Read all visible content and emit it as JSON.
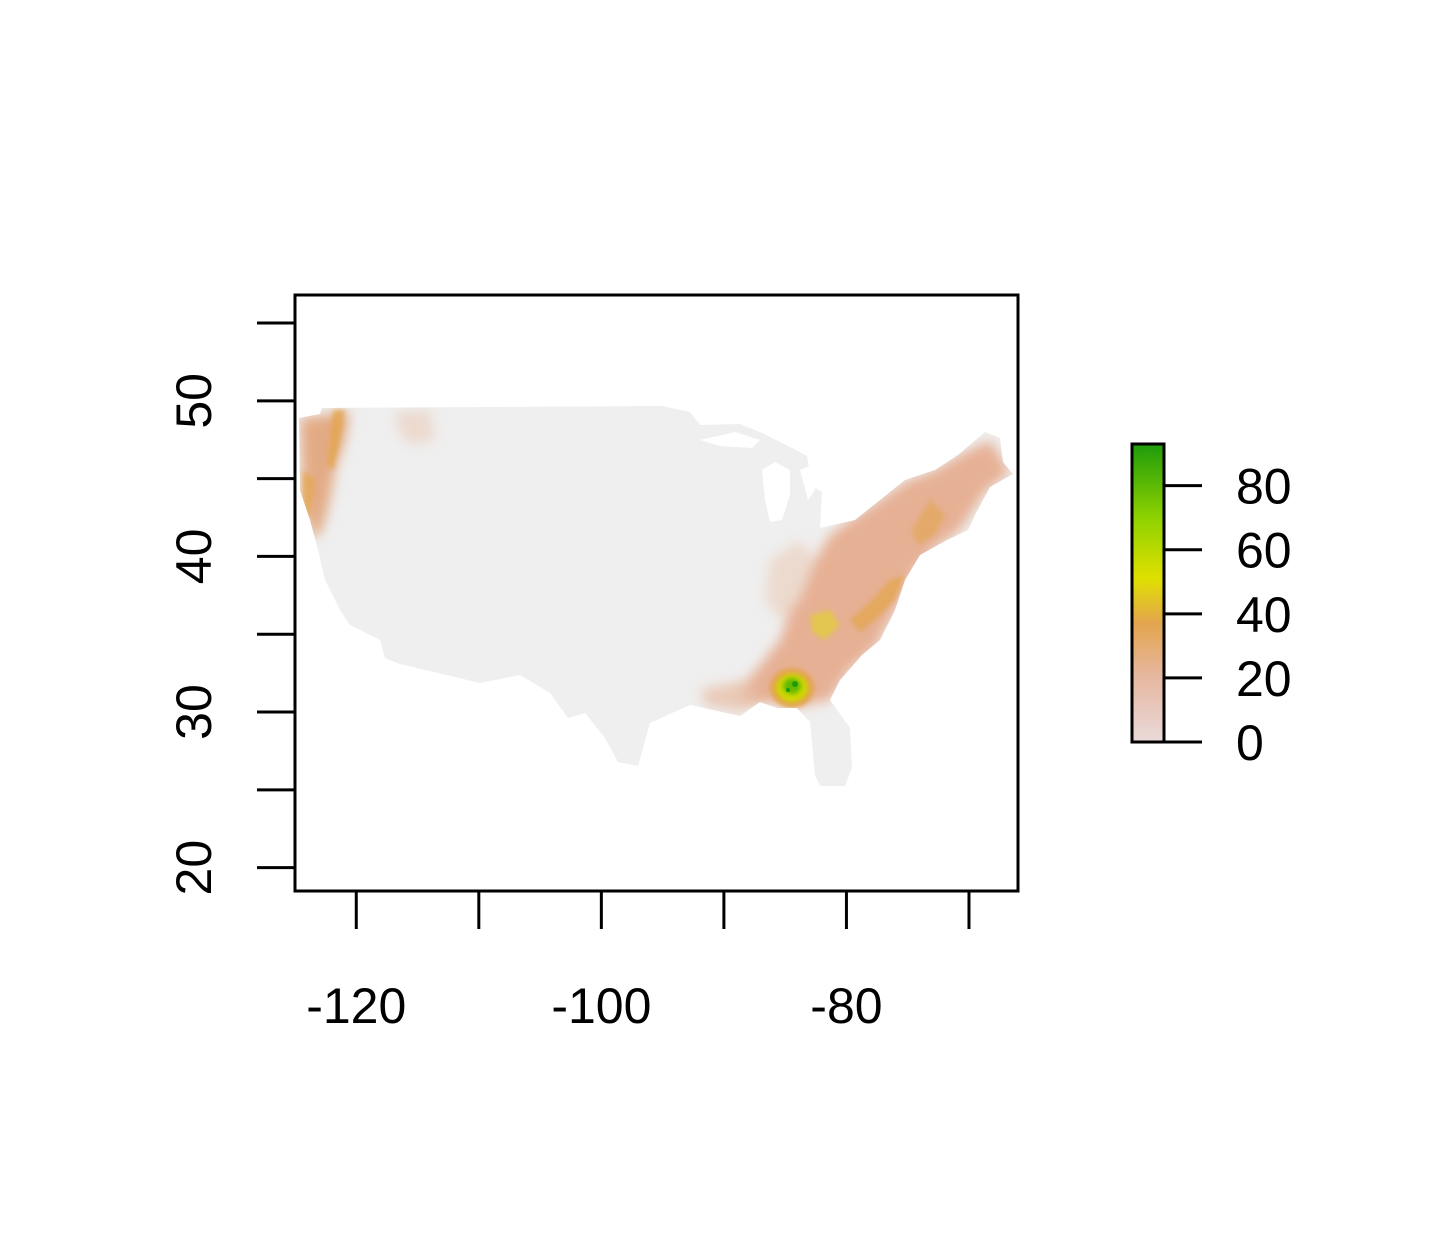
{
  "map": {
    "type": "raster",
    "title": "",
    "xlabel": "",
    "ylabel": "",
    "xlim": [
      -125,
      -66
    ],
    "ylim": [
      18.5,
      56.8
    ],
    "x_ticks": [
      -120,
      -110,
      -100,
      -90,
      -80,
      -70
    ],
    "x_tick_labels": [
      "-120",
      "",
      "-100",
      "",
      "-80",
      ""
    ],
    "y_ticks": [
      20,
      25,
      30,
      35,
      40,
      45,
      50,
      55
    ],
    "y_tick_labels": [
      "20",
      "",
      "30",
      "",
      "40",
      "",
      "50",
      ""
    ],
    "base_color": "#efefef",
    "region": "contiguous United States"
  },
  "legend": {
    "placement": "right",
    "range": [
      0,
      93
    ],
    "ticks": [
      0,
      20,
      40,
      60,
      80
    ],
    "tick_labels": [
      "0",
      "20",
      "40",
      "60",
      "80"
    ],
    "colors": [
      "#eadada",
      "#e6b7a0",
      "#e3a54d",
      "#dfe000",
      "#8fd200",
      "#1e9b0b"
    ]
  }
}
